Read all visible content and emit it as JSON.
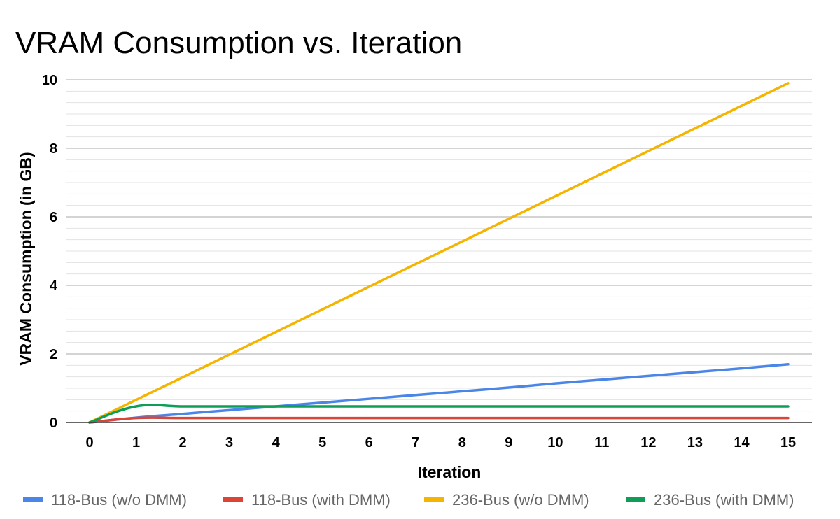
{
  "chart_data": {
    "type": "line",
    "title": "VRAM Consumption vs. Iteration",
    "xlabel": "Iteration",
    "ylabel": "VRAM Consumption (in GB)",
    "x": [
      0,
      1,
      2,
      3,
      4,
      5,
      6,
      7,
      8,
      9,
      10,
      11,
      12,
      13,
      14,
      15
    ],
    "xlim": [
      0,
      15
    ],
    "ylim": [
      0,
      10
    ],
    "y_ticks": [
      0,
      2,
      4,
      6,
      8,
      10
    ],
    "y_minor_step": 0.333,
    "grid": true,
    "legend_position": "bottom",
    "series": [
      {
        "name": "118-Bus (w/o DMM)",
        "color": "#4a86e8",
        "values": [
          0.0,
          0.14,
          0.25,
          0.36,
          0.47,
          0.58,
          0.69,
          0.8,
          0.91,
          1.02,
          1.14,
          1.25,
          1.36,
          1.47,
          1.58,
          1.7
        ]
      },
      {
        "name": "118-Bus (with DMM)",
        "color": "#db4437",
        "values": [
          0.0,
          0.13,
          0.13,
          0.13,
          0.13,
          0.13,
          0.13,
          0.13,
          0.13,
          0.13,
          0.13,
          0.13,
          0.13,
          0.13,
          0.13,
          0.13
        ]
      },
      {
        "name": "236-Bus (w/o DMM)",
        "color": "#f4b400",
        "values": [
          0.0,
          0.66,
          1.32,
          1.98,
          2.64,
          3.3,
          3.96,
          4.62,
          5.28,
          5.94,
          6.6,
          7.26,
          7.92,
          8.58,
          9.24,
          9.9
        ]
      },
      {
        "name": "236-Bus (with DMM)",
        "color": "#0f9d58",
        "values": [
          0.0,
          0.47,
          0.47,
          0.47,
          0.47,
          0.47,
          0.47,
          0.47,
          0.47,
          0.47,
          0.47,
          0.47,
          0.47,
          0.47,
          0.47,
          0.47
        ]
      }
    ]
  }
}
